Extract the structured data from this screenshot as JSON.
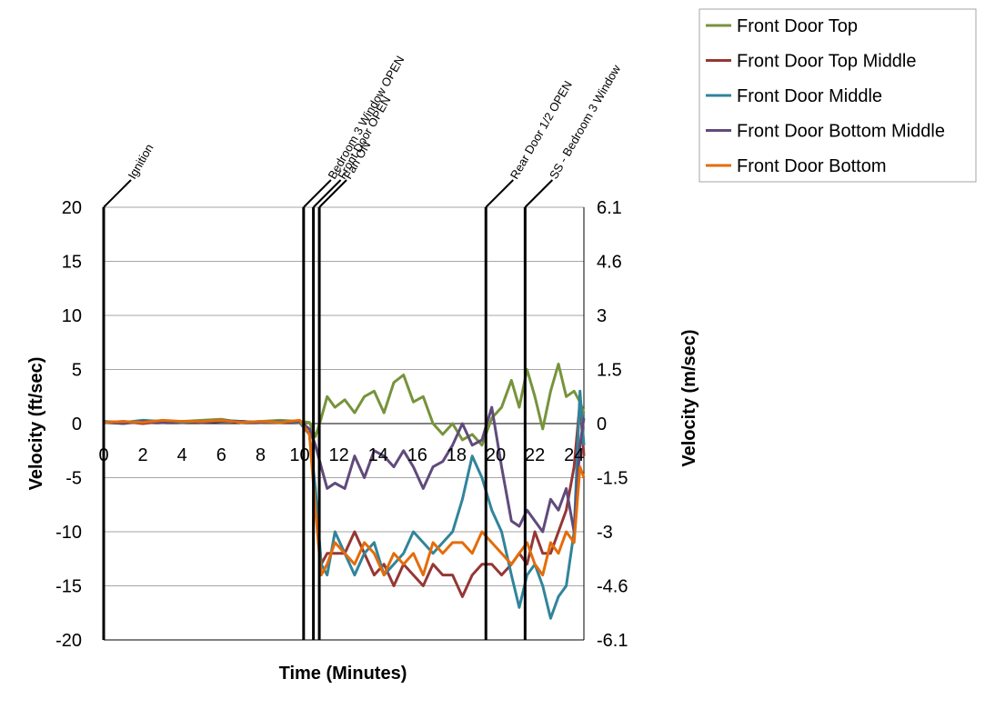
{
  "chart_data": {
    "type": "line",
    "title": "",
    "xlabel": "Time (Minutes)",
    "ylabel": "Velocity (ft/sec)",
    "y2label": "Velocity (m/sec)",
    "xlim": [
      0,
      24.5
    ],
    "ylim": [
      -20,
      20
    ],
    "x_ticks": [
      0,
      2,
      4,
      6,
      8,
      10,
      12,
      14,
      16,
      18,
      20,
      22,
      24
    ],
    "x_tick_labels": [
      "0",
      "2",
      "4",
      "6",
      "8",
      "10",
      "12",
      "14",
      "16",
      "18",
      "20",
      "22",
      "24"
    ],
    "y_ticks": [
      20,
      15,
      10,
      5,
      0,
      -5,
      -10,
      -15,
      -20
    ],
    "y_tick_labels": [
      "20",
      "15",
      "10",
      "5",
      "0",
      "-5",
      "-10",
      "-15",
      "-20"
    ],
    "y2_tick_labels": [
      "6.1",
      "4.6",
      "3",
      "1.5",
      "0",
      "-1.5",
      "-3",
      "-4.6",
      "-6.1"
    ],
    "grid": true,
    "legend_position": "top-right",
    "events": [
      {
        "x": 0.0,
        "label": "Ignition"
      },
      {
        "x": 10.2,
        "label": "Bedroom 3 Window OPEN"
      },
      {
        "x": 10.7,
        "label": "Front Door OPEN"
      },
      {
        "x": 11.0,
        "label": "Fan ON"
      },
      {
        "x": 19.5,
        "label": "Rear Door 1/2 OPEN"
      },
      {
        "x": 21.5,
        "label": "SS - Bedroom 3 Window"
      }
    ],
    "series": [
      {
        "name": "Front Door Top",
        "color": "#77933c",
        "x": [
          0,
          1,
          2,
          3,
          4,
          5,
          6,
          7,
          8,
          9,
          10,
          10.5,
          10.8,
          11.1,
          11.4,
          11.8,
          12.3,
          12.8,
          13.3,
          13.8,
          14.3,
          14.8,
          15.3,
          15.8,
          16.3,
          16.8,
          17.3,
          17.8,
          18.3,
          18.8,
          19.3,
          19.8,
          20.3,
          20.8,
          21.2,
          21.6,
          22.0,
          22.4,
          22.8,
          23.2,
          23.6,
          24.0,
          24.3,
          24.5
        ],
        "values": [
          0.2,
          0,
          0.3,
          0.1,
          0.2,
          0.3,
          0.4,
          0.1,
          0.2,
          0.3,
          0.2,
          0.1,
          -1.2,
          0.5,
          2.5,
          1.5,
          2.2,
          1,
          2.5,
          3,
          1,
          3.8,
          4.5,
          2,
          2.5,
          0,
          -1,
          0,
          -1.5,
          -1,
          -2,
          0.5,
          1.5,
          4,
          1.5,
          5,
          2.5,
          -0.5,
          3,
          5.5,
          2.5,
          3,
          2,
          1
        ]
      },
      {
        "name": "Front Door Top Middle",
        "color": "#953735",
        "x": [
          0,
          1,
          2,
          3,
          4,
          5,
          6,
          7,
          8,
          9,
          10,
          10.5,
          10.8,
          11.1,
          11.4,
          11.8,
          12.3,
          12.8,
          13.3,
          13.8,
          14.3,
          14.8,
          15.3,
          15.8,
          16.3,
          16.8,
          17.3,
          17.8,
          18.3,
          18.8,
          19.3,
          19.8,
          20.3,
          20.8,
          21.2,
          21.6,
          22.0,
          22.4,
          22.8,
          23.2,
          23.6,
          24.0,
          24.3,
          24.5
        ],
        "values": [
          0.1,
          0.2,
          0,
          0.2,
          0.1,
          0.2,
          0.3,
          0.2,
          0.1,
          0.2,
          0.1,
          -1,
          -7,
          -13,
          -12,
          -12,
          -12,
          -10,
          -12,
          -14,
          -13,
          -15,
          -13,
          -14,
          -15,
          -13,
          -14,
          -14,
          -16,
          -14,
          -13,
          -13,
          -14,
          -13,
          -12,
          -13,
          -10,
          -12,
          -12,
          -10,
          -8,
          -4,
          2,
          -3
        ]
      },
      {
        "name": "Front Door Middle",
        "color": "#31849b",
        "x": [
          0,
          1,
          2,
          3,
          4,
          5,
          6,
          7,
          8,
          9,
          10,
          10.5,
          10.8,
          11.1,
          11.4,
          11.8,
          12.3,
          12.8,
          13.3,
          13.8,
          14.3,
          14.8,
          15.3,
          15.8,
          16.3,
          16.8,
          17.3,
          17.8,
          18.3,
          18.8,
          19.3,
          19.8,
          20.3,
          20.8,
          21.2,
          21.6,
          22.0,
          22.4,
          22.8,
          23.2,
          23.6,
          24.0,
          24.3,
          24.5
        ],
        "values": [
          0.2,
          0.1,
          0.3,
          0.2,
          0.1,
          0.2,
          0.3,
          0.2,
          0.1,
          0.2,
          0.1,
          -1,
          -6,
          -13,
          -14,
          -10,
          -12,
          -14,
          -12,
          -11,
          -14,
          -13,
          -12,
          -10,
          -11,
          -12,
          -11,
          -10,
          -7,
          -3,
          -5,
          -8,
          -10,
          -14,
          -17,
          -14,
          -13,
          -15,
          -18,
          -16,
          -15,
          -10,
          3,
          -2
        ]
      },
      {
        "name": "Front Door Bottom Middle",
        "color": "#604a7b",
        "x": [
          0,
          1,
          2,
          3,
          4,
          5,
          6,
          7,
          8,
          9,
          10,
          10.5,
          10.8,
          11.1,
          11.4,
          11.8,
          12.3,
          12.8,
          13.3,
          13.8,
          14.3,
          14.8,
          15.3,
          15.8,
          16.3,
          16.8,
          17.3,
          17.8,
          18.3,
          18.8,
          19.3,
          19.8,
          20.3,
          20.8,
          21.2,
          21.6,
          22.0,
          22.4,
          22.8,
          23.2,
          23.6,
          24.0,
          24.3,
          24.5
        ],
        "values": [
          0.1,
          0,
          0.2,
          0.1,
          0.2,
          0.1,
          0.2,
          0.2,
          0.1,
          0.1,
          0.2,
          -0.5,
          -2,
          -4,
          -6,
          -5.5,
          -6,
          -3,
          -5,
          -2.5,
          -3,
          -4,
          -2.5,
          -4,
          -6,
          -4,
          -3.5,
          -2,
          0,
          -2,
          -1.5,
          1.5,
          -4,
          -9,
          -9.5,
          -8,
          -9,
          -10,
          -7,
          -8,
          -6,
          -10,
          -2,
          0.5
        ]
      },
      {
        "name": "Front Door Bottom",
        "color": "#e46c0a",
        "x": [
          0,
          1,
          2,
          3,
          4,
          5,
          6,
          7,
          8,
          9,
          10,
          10.5,
          10.8,
          11.1,
          11.4,
          11.8,
          12.3,
          12.8,
          13.3,
          13.8,
          14.3,
          14.8,
          15.3,
          15.8,
          16.3,
          16.8,
          17.3,
          17.8,
          18.3,
          18.8,
          19.3,
          19.8,
          20.3,
          20.8,
          21.2,
          21.6,
          22.0,
          22.4,
          22.8,
          23.2,
          23.6,
          24.0,
          24.3,
          24.5
        ],
        "values": [
          0.1,
          0.2,
          0.1,
          0.3,
          0.2,
          0.2,
          0.3,
          0.1,
          0.2,
          0.1,
          0.3,
          -1,
          -8,
          -14,
          -13,
          -11,
          -12,
          -13,
          -11,
          -12,
          -14,
          -12,
          -13,
          -12,
          -14,
          -11,
          -12,
          -11,
          -11,
          -12,
          -10,
          -11,
          -12,
          -13,
          -12,
          -11,
          -13,
          -14,
          -11,
          -12,
          -10,
          -11,
          -4,
          -5
        ]
      }
    ]
  }
}
